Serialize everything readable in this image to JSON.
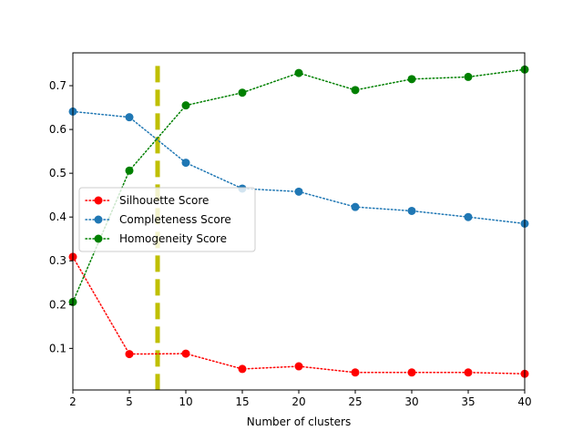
{
  "chart_data": {
    "type": "line",
    "title": "",
    "xlabel": "Number of clusters",
    "ylabel": "",
    "x": [
      2,
      5,
      10,
      15,
      20,
      25,
      30,
      35,
      40
    ],
    "x_tick_positions": [
      2,
      5,
      10,
      15,
      20,
      25,
      30,
      35,
      40
    ],
    "x_tick_labels": [
      "2",
      "5",
      "10",
      "15",
      "20",
      "25",
      "30",
      "35",
      "40"
    ],
    "y_tick_values": [
      0.1,
      0.2,
      0.3,
      0.4,
      0.5,
      0.6,
      0.7
    ],
    "y_tick_labels": [
      "0.1",
      "0.2",
      "0.3",
      "0.4",
      "0.5",
      "0.6",
      "0.7"
    ],
    "xlim": [
      2,
      40
    ],
    "ylim": [
      0.005,
      0.775
    ],
    "x_scale": "categorical (uniform spacing between listed cluster counts)",
    "grid": false,
    "legend_position": "center-left",
    "series": [
      {
        "name": "Silhouette Score",
        "color": "#ff0000",
        "linestyle": "dotted",
        "marker": "circle",
        "values": [
          0.309,
          0.087,
          0.088,
          0.053,
          0.059,
          0.045,
          0.045,
          0.045,
          0.042
        ]
      },
      {
        "name": "Completeness Score",
        "color": "#1f77b4",
        "linestyle": "dotted",
        "marker": "circle",
        "values": [
          0.641,
          0.628,
          0.524,
          0.465,
          0.458,
          0.423,
          0.414,
          0.4,
          0.385
        ]
      },
      {
        "name": "Homogeneity Score",
        "color": "#008000",
        "linestyle": "dotted",
        "marker": "circle",
        "values": [
          0.206,
          0.506,
          0.655,
          0.684,
          0.729,
          0.69,
          0.715,
          0.72,
          0.737
        ]
      }
    ],
    "reference_line": {
      "orientation": "vertical",
      "x": 7.5,
      "color": "#bfbf00",
      "linestyle": "dashed"
    }
  }
}
